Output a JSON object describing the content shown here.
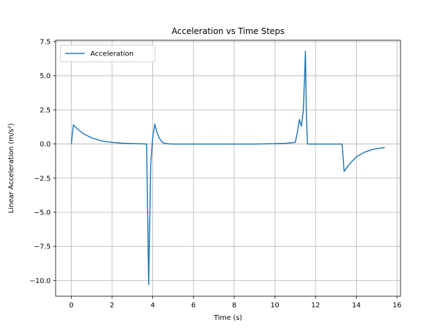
{
  "chart_data": {
    "type": "line",
    "title": "Acceleration vs Time Steps",
    "xlabel": "Time (s)",
    "ylabel": "Linear Acceleration (m/s²)",
    "xlim": [
      -0.77,
      16.17
    ],
    "ylim": [
      -11.15,
      7.6
    ],
    "xticks": [
      0,
      2,
      4,
      6,
      8,
      10,
      12,
      14,
      16
    ],
    "yticks": [
      -10.0,
      -7.5,
      -5.0,
      -2.5,
      0.0,
      2.5,
      5.0,
      7.5
    ],
    "xtick_labels": [
      "0",
      "2",
      "4",
      "6",
      "8",
      "10",
      "12",
      "14",
      "16"
    ],
    "ytick_labels": [
      "−10.0",
      "−7.5",
      "−5.0",
      "−2.5",
      "0.0",
      "2.5",
      "5.0",
      "7.5"
    ],
    "grid": true,
    "legend_position": "top-left",
    "series": [
      {
        "name": "Acceleration",
        "color": "#1f77b4",
        "x": [
          0.0,
          0.1,
          0.3,
          0.6,
          1.0,
          1.5,
          2.0,
          2.5,
          3.0,
          3.5,
          3.7,
          3.75,
          3.8,
          3.9,
          4.0,
          4.1,
          4.2,
          4.3,
          4.4,
          4.5,
          4.6,
          4.8,
          5.0,
          6.0,
          7.0,
          8.0,
          9.0,
          10.0,
          10.5,
          11.0,
          11.1,
          11.2,
          11.3,
          11.4,
          11.5,
          11.55,
          11.6,
          12.0,
          13.0,
          13.3,
          13.4,
          13.7,
          14.0,
          14.4,
          14.8,
          15.4
        ],
        "y": [
          0.0,
          1.4,
          1.1,
          0.75,
          0.45,
          0.22,
          0.12,
          0.06,
          0.03,
          0.01,
          0.0,
          -5.0,
          -10.3,
          -1.5,
          0.5,
          1.45,
          0.9,
          0.5,
          0.25,
          0.1,
          0.04,
          0.01,
          0.0,
          0.0,
          0.0,
          0.0,
          0.0,
          0.02,
          0.05,
          0.12,
          0.8,
          1.8,
          1.3,
          2.5,
          6.8,
          2.0,
          0.0,
          0.0,
          0.0,
          0.0,
          -2.0,
          -1.4,
          -0.95,
          -0.6,
          -0.4,
          -0.25
        ]
      }
    ]
  }
}
